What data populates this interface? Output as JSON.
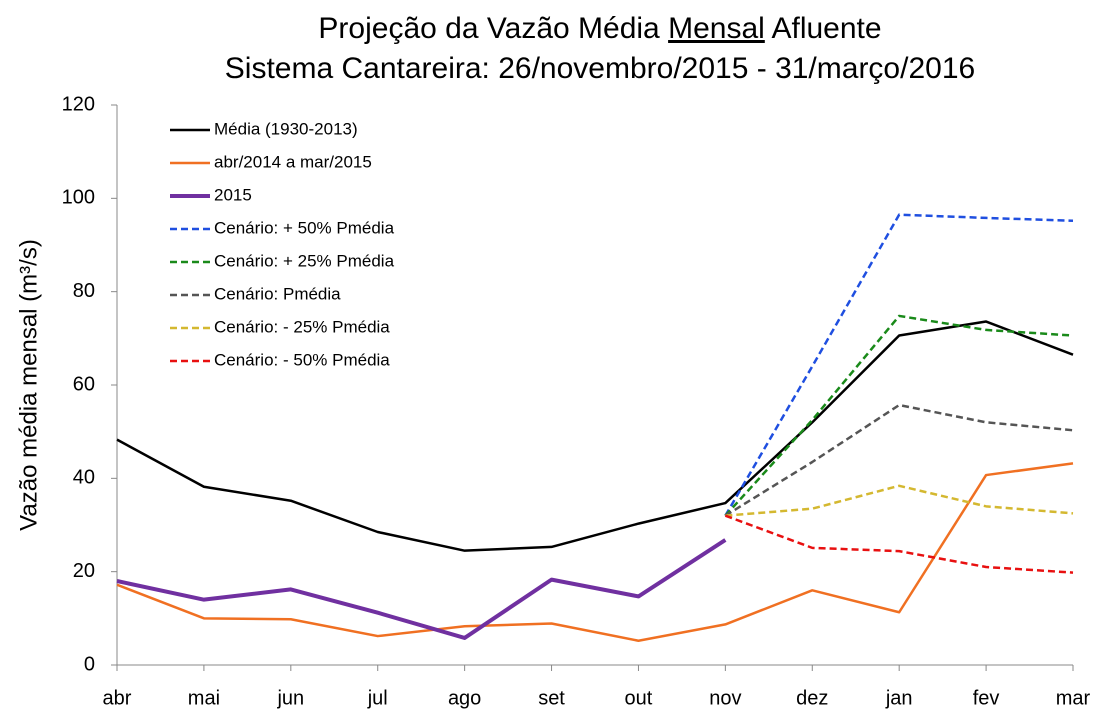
{
  "chart_data": {
    "type": "line",
    "title": [
      "Projeção da Vazão Média ",
      "Mensal",
      " Afluente"
    ],
    "subtitle": "Sistema Cantareira: 26/novembro/2015 - 31/março/2016",
    "y_label": "Vazão média mensal (m³/s)",
    "categories": [
      "abr",
      "mai",
      "jun",
      "jul",
      "ago",
      "set",
      "out",
      "nov",
      "dez",
      "jan",
      "fev",
      "mar"
    ],
    "ylim": [
      0,
      120
    ],
    "yticks": [
      0,
      20,
      40,
      60,
      80,
      100,
      120
    ],
    "series": [
      {
        "name": "Média (1930-2013)",
        "color": "#000000",
        "dash": false,
        "width": 2.5,
        "values": [
          48.3,
          38.2,
          35.2,
          28.5,
          24.5,
          25.3,
          30.3,
          34.7,
          52,
          70.6,
          73.6,
          66.5
        ]
      },
      {
        "name": "abr/2014 a mar/2015",
        "color": "#f07022",
        "dash": false,
        "width": 2.5,
        "values": [
          17.2,
          10,
          9.8,
          6.2,
          8.3,
          8.9,
          5.2,
          8.7,
          16,
          11.3,
          40.7,
          43.2
        ]
      },
      {
        "name": "2015",
        "color": "#7030a0",
        "dash": false,
        "width": 4,
        "values": [
          18,
          14,
          16.2,
          11.2,
          5.8,
          18.3,
          14.7,
          26.8,
          null,
          null,
          null,
          null
        ]
      },
      {
        "name": "Cenário: + 50% Pmédia",
        "color": "#1f4fe0",
        "dash": true,
        "width": 2.5,
        "values": [
          null,
          null,
          null,
          null,
          null,
          null,
          null,
          32,
          64,
          96.5,
          95.8,
          95.2
        ]
      },
      {
        "name": "Cenário: + 25% Pmédia",
        "color": "#1a8a1a",
        "dash": true,
        "width": 2.5,
        "values": [
          null,
          null,
          null,
          null,
          null,
          null,
          null,
          32,
          52.5,
          74.8,
          71.8,
          70.6
        ]
      },
      {
        "name": "Cenário: Pmédia",
        "color": "#555555",
        "dash": true,
        "width": 2.5,
        "values": [
          null,
          null,
          null,
          null,
          null,
          null,
          null,
          32,
          43.5,
          55.7,
          52,
          50.3
        ]
      },
      {
        "name": "Cenário: - 25% Pmédia",
        "color": "#d4b830",
        "dash": true,
        "width": 2.5,
        "values": [
          null,
          null,
          null,
          null,
          null,
          null,
          null,
          32,
          33.5,
          38.4,
          34,
          32.5
        ]
      },
      {
        "name": "Cenário: - 50% Pmédia",
        "color": "#e81010",
        "dash": true,
        "width": 2.5,
        "values": [
          null,
          null,
          null,
          null,
          null,
          null,
          null,
          32,
          25.1,
          24.4,
          21,
          19.8
        ]
      }
    ]
  }
}
